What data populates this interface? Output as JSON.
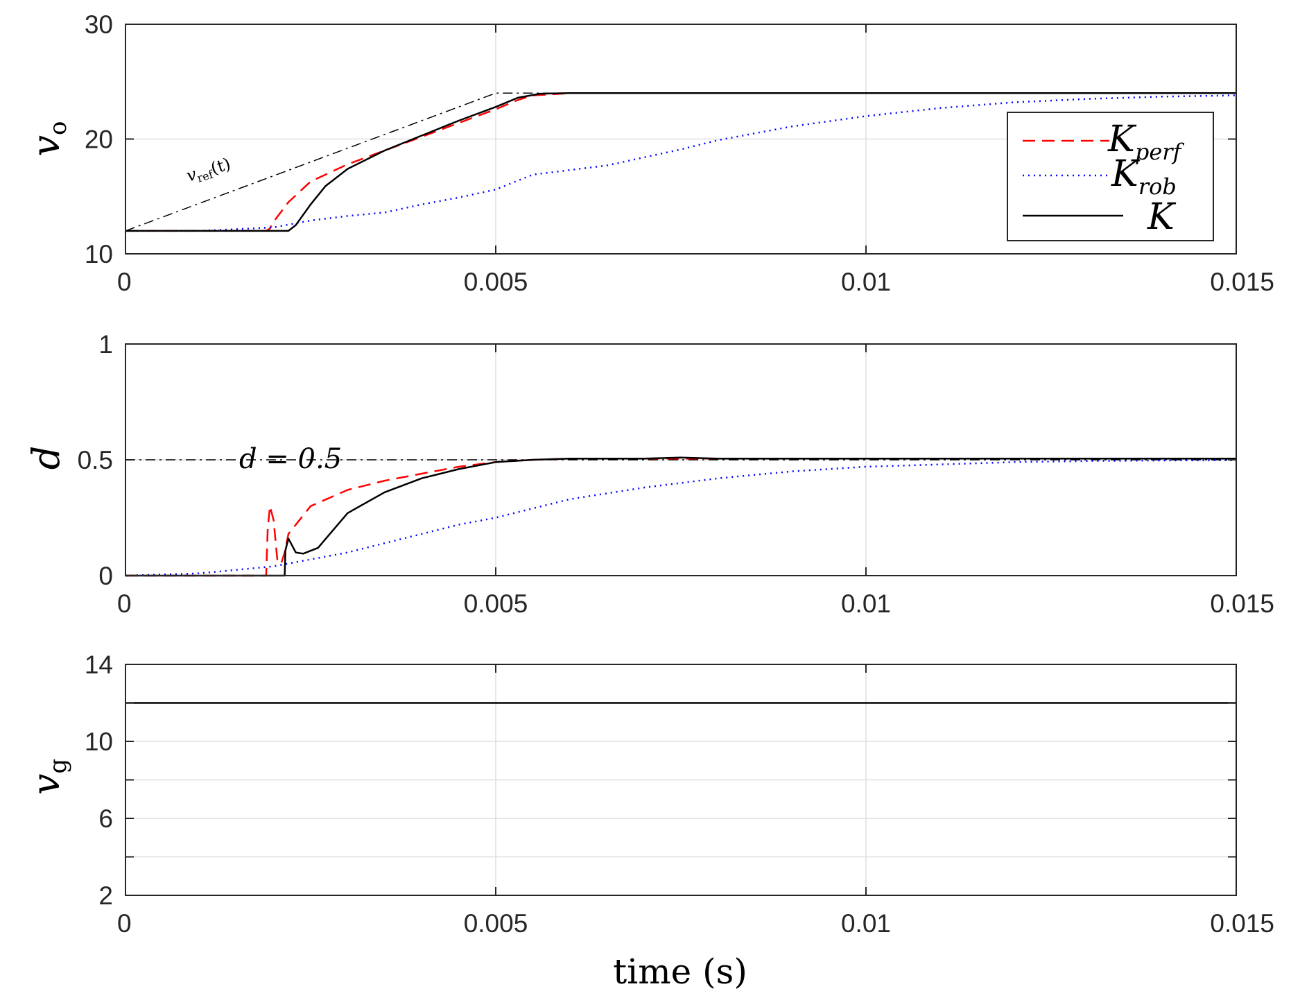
{
  "chart_data": [
    {
      "type": "line",
      "panel": "top",
      "ylabel": "v",
      "ylabel_sub": "o",
      "xlim": [
        0,
        0.015
      ],
      "ylim": [
        10,
        30
      ],
      "xticks": [
        0,
        0.005,
        0.01,
        0.015
      ],
      "xtick_labels": [
        "0",
        "0.005",
        "0.01",
        "0.015"
      ],
      "yticks": [
        10,
        20,
        30
      ],
      "ytick_labels": [
        "10",
        "20",
        "30"
      ],
      "grid": true,
      "legend": {
        "position": "right",
        "entries": [
          {
            "series": "K_perf",
            "label": "K",
            "sub": "perf"
          },
          {
            "series": "K_rob",
            "label": "K",
            "sub": "rob"
          },
          {
            "series": "K",
            "label": "K",
            "sub": ""
          }
        ]
      },
      "annotation": {
        "text": "v",
        "sub": "ref",
        "suffix": "(t)"
      },
      "series": [
        {
          "id": "K_perf",
          "name": "K_perf",
          "color": "#ff0000",
          "style": "dashed",
          "x": [
            0,
            0.0019,
            0.00195,
            0.002,
            0.0022,
            0.0025,
            0.003,
            0.0035,
            0.004,
            0.0045,
            0.005,
            0.0053,
            0.0055,
            0.006,
            0.008,
            0.01,
            0.015
          ],
          "y": [
            12,
            12,
            12.2,
            12.8,
            14.5,
            16.3,
            17.8,
            19.0,
            20.2,
            21.4,
            22.6,
            23.4,
            23.8,
            24.0,
            24.0,
            24.0,
            24.0
          ]
        },
        {
          "id": "K_rob",
          "name": "K_rob",
          "color": "#0000ff",
          "style": "dotted",
          "x": [
            0,
            0.001,
            0.002,
            0.0025,
            0.003,
            0.0035,
            0.004,
            0.0045,
            0.005,
            0.0055,
            0.006,
            0.0065,
            0.007,
            0.0075,
            0.008,
            0.009,
            0.01,
            0.011,
            0.012,
            0.013,
            0.014,
            0.015
          ],
          "y": [
            12,
            12.0,
            12.3,
            12.9,
            13.3,
            13.6,
            14.3,
            14.9,
            15.6,
            16.9,
            17.3,
            17.7,
            18.4,
            19.1,
            19.9,
            21.1,
            22.0,
            22.7,
            23.2,
            23.5,
            23.7,
            23.8
          ]
        },
        {
          "id": "K",
          "name": "K",
          "color": "#000000",
          "style": "solid",
          "x": [
            0,
            0.0022,
            0.0023,
            0.0025,
            0.0027,
            0.003,
            0.0035,
            0.004,
            0.0045,
            0.005,
            0.0053,
            0.0056,
            0.006,
            0.008,
            0.01,
            0.015
          ],
          "y": [
            12,
            12,
            12.5,
            14.3,
            15.9,
            17.4,
            19.0,
            20.3,
            21.6,
            22.8,
            23.6,
            23.95,
            24.0,
            24.0,
            24.0,
            24.0
          ]
        },
        {
          "id": "v_ref",
          "name": "v_ref(t)",
          "color": "#000000",
          "style": "dashdot",
          "x": [
            0,
            0.005,
            0.015
          ],
          "y": [
            12,
            24,
            24
          ]
        }
      ]
    },
    {
      "type": "line",
      "panel": "middle",
      "ylabel": "d",
      "xlim": [
        0,
        0.015
      ],
      "ylim": [
        0,
        1
      ],
      "xticks": [
        0,
        0.005,
        0.01,
        0.015
      ],
      "xtick_labels": [
        "0",
        "0.005",
        "0.01",
        "0.015"
      ],
      "yticks": [
        0,
        0.5,
        1
      ],
      "ytick_labels": [
        "0",
        "0.5",
        "1"
      ],
      "grid": true,
      "annotation": {
        "text": "d = 0.5"
      },
      "series": [
        {
          "id": "d_ref",
          "name": "d = 0.5",
          "color": "#000000",
          "style": "dashdot",
          "x": [
            0,
            0.015
          ],
          "y": [
            0.5,
            0.5
          ]
        },
        {
          "id": "K_perf",
          "name": "K_perf",
          "color": "#ff0000",
          "style": "dashed",
          "x": [
            0,
            0.0019,
            0.00192,
            0.00195,
            0.002,
            0.00205,
            0.0021,
            0.00215,
            0.0022,
            0.0025,
            0.003,
            0.0035,
            0.004,
            0.0045,
            0.005,
            0.0055,
            0.006,
            0.008,
            0.01,
            0.0125,
            0.015
          ],
          "y": [
            0,
            0,
            0.2,
            0.3,
            0.24,
            0.07,
            0.05,
            0.1,
            0.18,
            0.3,
            0.37,
            0.41,
            0.44,
            0.47,
            0.49,
            0.5,
            0.505,
            0.505,
            0.505,
            0.505,
            0.505
          ]
        },
        {
          "id": "K_rob",
          "name": "K_rob",
          "color": "#0000ff",
          "style": "dotted",
          "x": [
            0,
            0.001,
            0.002,
            0.0025,
            0.003,
            0.0035,
            0.004,
            0.0045,
            0.005,
            0.0055,
            0.006,
            0.007,
            0.008,
            0.009,
            0.01,
            0.011,
            0.012,
            0.013,
            0.014,
            0.015
          ],
          "y": [
            0,
            0.01,
            0.04,
            0.07,
            0.1,
            0.14,
            0.18,
            0.22,
            0.25,
            0.29,
            0.33,
            0.38,
            0.42,
            0.45,
            0.47,
            0.48,
            0.49,
            0.495,
            0.497,
            0.498
          ]
        },
        {
          "id": "K",
          "name": "K",
          "color": "#000000",
          "style": "solid",
          "x": [
            0,
            0.00215,
            0.00216,
            0.0022,
            0.00225,
            0.0023,
            0.0024,
            0.0026,
            0.003,
            0.0035,
            0.004,
            0.0045,
            0.005,
            0.0055,
            0.006,
            0.007,
            0.0075,
            0.008,
            0.01,
            0.015
          ],
          "y": [
            0,
            0,
            0.11,
            0.16,
            0.13,
            0.1,
            0.095,
            0.12,
            0.27,
            0.36,
            0.42,
            0.46,
            0.49,
            0.5,
            0.505,
            0.505,
            0.51,
            0.505,
            0.505,
            0.505
          ]
        }
      ]
    },
    {
      "type": "line",
      "panel": "bottom",
      "ylabel": "v",
      "ylabel_sub": "g",
      "xlabel": "time (s)",
      "xlim": [
        0,
        0.015
      ],
      "ylim": [
        2,
        14
      ],
      "xticks": [
        0,
        0.005,
        0.01,
        0.015
      ],
      "xtick_labels": [
        "0",
        "0.005",
        "0.01",
        "0.015"
      ],
      "yticks": [
        2,
        4,
        6,
        8,
        10,
        12,
        14
      ],
      "ytick_labels": [
        "2",
        "",
        "6",
        "",
        "10",
        "",
        "14"
      ],
      "grid": true,
      "series": [
        {
          "id": "vg",
          "name": "v_g",
          "color": "#000000",
          "style": "solid",
          "x": [
            0,
            0.015
          ],
          "y": [
            12,
            12
          ]
        }
      ]
    }
  ]
}
